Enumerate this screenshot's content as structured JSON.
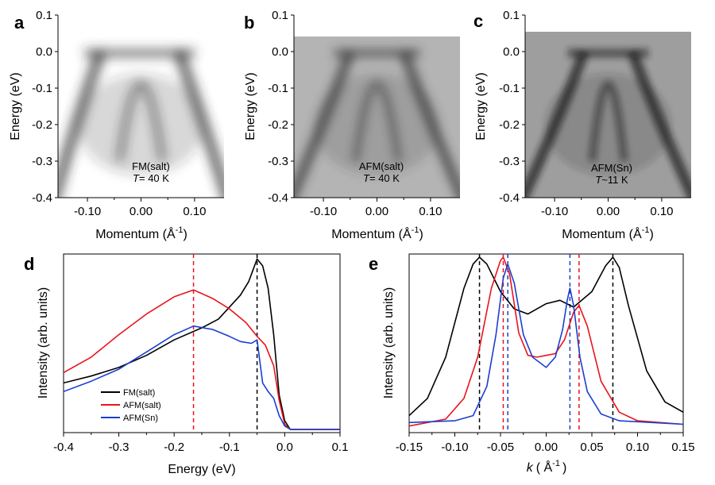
{
  "panels": {
    "a": {
      "letter": "a",
      "xlabel": "Momentum (Å",
      "xlabel_exp": "-1",
      "ylabel": "Energy (eV)",
      "yticks": [
        "0.1",
        "0.0",
        "-0.1",
        "-0.2",
        "-0.3",
        "-0.4"
      ],
      "xticks": [
        "-0.10",
        "0.00",
        "0.10"
      ],
      "annotation_line1": "FM(salt)",
      "annotation_T": "T",
      "annotation_value": "= 40 K",
      "background": "#ffffff",
      "band_color": "#303030"
    },
    "b": {
      "letter": "b",
      "xlabel": "Momentum (Å",
      "xlabel_exp": "-1",
      "ylabel": "Energy (eV)",
      "yticks": [
        "0.1",
        "0.0",
        "-0.1",
        "-0.2",
        "-0.3",
        "-0.4"
      ],
      "xticks": [
        "-0.10",
        "0.00",
        "0.10"
      ],
      "annotation_line1": "AFM(salt)",
      "annotation_T": "T",
      "annotation_value": "= 40 K",
      "background": "#b4b4b4",
      "band_color": "#3a3a3a"
    },
    "c": {
      "letter": "c",
      "xlabel": "Momentum (Å",
      "xlabel_exp": "-1",
      "ylabel": "Energy (eV)",
      "yticks": [
        "0.1",
        "0.0",
        "-0.1",
        "-0.2",
        "-0.3",
        "-0.4"
      ],
      "xticks": [
        "-0.10",
        "0.00",
        "0.10"
      ],
      "annotation_line1": "AFM(Sn)",
      "annotation_T": "T",
      "annotation_value": "~11 K",
      "background": "#9e9e9e",
      "band_color": "#1e1e1e"
    },
    "d": {
      "letter": "d",
      "xlabel": "Energy (eV)",
      "ylabel": "Intensity (arb. units)",
      "xticks": [
        "-0.4",
        "-0.3",
        "-0.2",
        "-0.1",
        "0.0",
        "0.1"
      ],
      "legend": [
        "FM(salt)",
        "AFM(salt)",
        "AFM(Sn)"
      ]
    },
    "e": {
      "letter": "e",
      "xlabel_k": "k",
      "xlabel_rest": "( Å",
      "xlabel_exp": "-1",
      "xlabel_close": ")",
      "ylabel": "Intensity (arb. units)",
      "xticks": [
        "-0.15",
        "-0.10",
        "-0.05",
        "0.00",
        "0.05",
        "0.10",
        "0.15"
      ]
    }
  },
  "colors": {
    "FM": "#000000",
    "AFM_salt": "#e8141c",
    "AFM_Sn": "#1a3fd0"
  },
  "chart_data": [
    {
      "type": "heatmap",
      "panel": "a",
      "title": "FM(salt), T = 40 K",
      "xlabel": "Momentum (Å^-1)",
      "ylabel": "Energy (eV)",
      "xlim": [
        -0.155,
        0.155
      ],
      "ylim": [
        -0.4,
        0.1
      ],
      "data_top": 0.005,
      "band_centers": [
        -0.085,
        -0.03,
        0.03,
        0.08
      ]
    },
    {
      "type": "heatmap",
      "panel": "b",
      "title": "AFM(salt), T = 40 K",
      "xlabel": "Momentum (Å^-1)",
      "ylabel": "Energy (eV)",
      "xlim": [
        -0.155,
        0.155
      ],
      "ylim": [
        -0.4,
        0.1
      ],
      "data_top": 0.06,
      "band_centers": [
        -0.06,
        -0.03,
        0.03,
        0.06
      ]
    },
    {
      "type": "heatmap",
      "panel": "c",
      "title": "AFM(Sn), T~11 K",
      "xlabel": "Momentum (Å^-1)",
      "ylabel": "Energy (eV)",
      "xlim": [
        -0.155,
        0.155
      ],
      "ylim": [
        -0.4,
        0.1
      ],
      "data_top": 0.07,
      "band_centers": [
        -0.055,
        -0.02,
        0.02,
        0.055
      ]
    },
    {
      "type": "line",
      "panel": "d",
      "xlabel": "Energy (eV)",
      "ylabel": "Intensity (arb. units)",
      "xlim": [
        -0.4,
        0.1
      ],
      "ylim": [
        0,
        1
      ],
      "vlines": [
        {
          "x": -0.165,
          "series": "AFM(salt)"
        },
        {
          "x": -0.05,
          "series": "FM(salt)"
        }
      ],
      "series": [
        {
          "name": "FM(salt)",
          "color_key": "FM",
          "x": [
            -0.4,
            -0.35,
            -0.3,
            -0.25,
            -0.2,
            -0.15,
            -0.12,
            -0.1,
            -0.08,
            -0.065,
            -0.05,
            -0.04,
            -0.03,
            -0.02,
            -0.01,
            0.0,
            0.01,
            0.1
          ],
          "y": [
            0.27,
            0.31,
            0.36,
            0.43,
            0.52,
            0.59,
            0.64,
            0.71,
            0.78,
            0.86,
            0.99,
            0.95,
            0.82,
            0.55,
            0.2,
            0.05,
            0.0,
            0.0
          ]
        },
        {
          "name": "AFM(salt)",
          "color_key": "AFM_salt",
          "x": [
            -0.4,
            -0.35,
            -0.3,
            -0.25,
            -0.2,
            -0.165,
            -0.13,
            -0.1,
            -0.07,
            -0.05,
            -0.035,
            -0.02,
            -0.01,
            0.0,
            0.01,
            0.1
          ],
          "y": [
            0.33,
            0.42,
            0.55,
            0.67,
            0.77,
            0.81,
            0.76,
            0.7,
            0.62,
            0.54,
            0.49,
            0.37,
            0.17,
            0.03,
            0.0,
            0.0
          ]
        },
        {
          "name": "AFM(Sn)",
          "color_key": "AFM_Sn",
          "x": [
            -0.4,
            -0.35,
            -0.3,
            -0.25,
            -0.2,
            -0.165,
            -0.13,
            -0.1,
            -0.08,
            -0.06,
            -0.05,
            -0.04,
            -0.03,
            -0.02,
            -0.01,
            0.0,
            0.01,
            0.1
          ],
          "y": [
            0.22,
            0.28,
            0.35,
            0.45,
            0.55,
            0.6,
            0.58,
            0.54,
            0.51,
            0.5,
            0.52,
            0.27,
            0.22,
            0.18,
            0.08,
            0.02,
            0.0,
            0.0
          ]
        }
      ]
    },
    {
      "type": "line",
      "panel": "e",
      "xlabel": "k (Å^-1)",
      "ylabel": "Intensity (arb. units)",
      "xlim": [
        -0.15,
        0.15
      ],
      "ylim": [
        0,
        1
      ],
      "vlines": [
        {
          "x": -0.073,
          "series": "FM(salt)"
        },
        {
          "x": 0.073,
          "series": "FM(salt)"
        },
        {
          "x": -0.047,
          "series": "AFM(salt)"
        },
        {
          "x": 0.036,
          "series": "AFM(salt)"
        },
        {
          "x": -0.042,
          "series": "AFM(Sn)"
        },
        {
          "x": 0.026,
          "series": "AFM(Sn)"
        }
      ],
      "series": [
        {
          "name": "FM(salt)",
          "color_key": "FM",
          "x": [
            -0.15,
            -0.13,
            -0.11,
            -0.09,
            -0.08,
            -0.073,
            -0.065,
            -0.05,
            -0.035,
            -0.02,
            0.0,
            0.015,
            0.03,
            0.05,
            0.065,
            0.073,
            0.08,
            0.09,
            0.11,
            0.13,
            0.15
          ],
          "y": [
            0.08,
            0.18,
            0.42,
            0.82,
            0.96,
            1.0,
            0.96,
            0.8,
            0.7,
            0.67,
            0.73,
            0.75,
            0.71,
            0.8,
            0.95,
            1.0,
            0.94,
            0.72,
            0.34,
            0.16,
            0.1
          ]
        },
        {
          "name": "AFM(salt)",
          "color_key": "AFM_salt",
          "x": [
            -0.15,
            -0.11,
            -0.09,
            -0.075,
            -0.06,
            -0.05,
            -0.047,
            -0.04,
            -0.03,
            -0.02,
            -0.01,
            0.0,
            0.01,
            0.02,
            0.03,
            0.036,
            0.045,
            0.06,
            0.08,
            0.1,
            0.15
          ],
          "y": [
            0.02,
            0.06,
            0.18,
            0.42,
            0.82,
            0.98,
            1.0,
            0.9,
            0.56,
            0.43,
            0.42,
            0.43,
            0.44,
            0.52,
            0.68,
            0.72,
            0.6,
            0.28,
            0.1,
            0.05,
            0.03
          ]
        },
        {
          "name": "AFM(Sn)",
          "color_key": "AFM_Sn",
          "x": [
            -0.15,
            -0.1,
            -0.08,
            -0.065,
            -0.055,
            -0.047,
            -0.042,
            -0.035,
            -0.025,
            -0.015,
            0.0,
            0.01,
            0.018,
            0.023,
            0.026,
            0.03,
            0.037,
            0.045,
            0.06,
            0.08,
            0.15
          ],
          "y": [
            0.04,
            0.05,
            0.08,
            0.25,
            0.55,
            0.88,
            0.96,
            0.85,
            0.55,
            0.42,
            0.36,
            0.42,
            0.58,
            0.75,
            0.82,
            0.72,
            0.42,
            0.22,
            0.09,
            0.05,
            0.03
          ]
        }
      ]
    }
  ]
}
